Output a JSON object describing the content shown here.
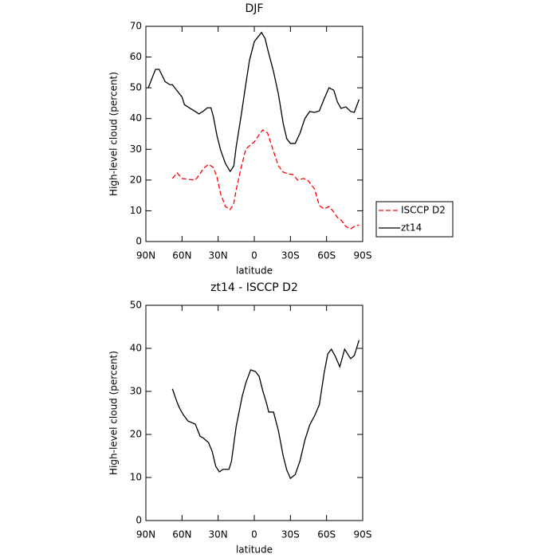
{
  "chart_data": [
    {
      "type": "line",
      "title": "DJF",
      "x_label": "latitude",
      "y_label": "High-level cloud (percent)",
      "xlim": [
        90,
        -90
      ],
      "xticks": [
        {
          "value": 90,
          "label": "90N"
        },
        {
          "value": 60,
          "label": "60N"
        },
        {
          "value": 30,
          "label": "30N"
        },
        0,
        {
          "value": -30,
          "label": "30S"
        },
        {
          "value": -60,
          "label": "60S"
        },
        {
          "value": -90,
          "label": "90S"
        }
      ],
      "ylim": [
        0,
        70
      ],
      "yticks": [
        0,
        10,
        20,
        30,
        40,
        50,
        60,
        70
      ],
      "legend": "outside-right",
      "series": [
        {
          "name": "ISCCP D2",
          "color": "#ff0000",
          "line_style": "dashed",
          "x": [
            68,
            64,
            60,
            54,
            49,
            46,
            42,
            38,
            34,
            31,
            28,
            24,
            20,
            17,
            15,
            11,
            7,
            4,
            0,
            -4,
            -7,
            -11,
            -16,
            -20,
            -24,
            -28,
            -32,
            -36,
            -41,
            -45,
            -50,
            -54,
            -58,
            -62,
            -66,
            -69,
            -72,
            -76,
            -80,
            -83,
            -87
          ],
          "values": [
            20.5,
            22.3,
            20.5,
            20.2,
            20,
            21.5,
            23.8,
            25.1,
            24.1,
            21,
            15.6,
            11.4,
            10.4,
            12.4,
            16.9,
            23.9,
            30.1,
            31.1,
            32.4,
            34.7,
            36.3,
            35.3,
            29.3,
            24.6,
            22.6,
            22,
            21.8,
            20,
            20.5,
            19.7,
            17.1,
            11.7,
            10.6,
            11.4,
            9.6,
            7.8,
            7,
            4.9,
            4.1,
            4.9,
            5.4
          ]
        },
        {
          "name": "zt14",
          "color": "#000000",
          "line_style": "solid",
          "x": [
            88,
            82,
            79,
            74,
            70,
            68,
            64,
            60,
            58,
            54,
            49,
            46,
            42,
            39,
            36,
            34,
            31,
            28,
            24,
            20,
            17,
            15,
            11,
            7,
            4,
            0,
            -4,
            -6,
            -9,
            -11,
            -16,
            -20,
            -24,
            -27,
            -30,
            -34,
            -38,
            -42,
            -46,
            -50,
            -54,
            -58,
            -62,
            -66,
            -69,
            -72,
            -76,
            -80,
            -83,
            -87
          ],
          "values": [
            50,
            56,
            56,
            52,
            51,
            51,
            49,
            47,
            44.5,
            43.5,
            42.3,
            41.5,
            42.5,
            43.5,
            43.5,
            40.7,
            34.5,
            29.8,
            25.4,
            22.8,
            24.6,
            30.9,
            40.7,
            51.3,
            58.9,
            65,
            67,
            68,
            66,
            62.7,
            55.2,
            48,
            38.4,
            33.4,
            31.9,
            31.9,
            35.3,
            40,
            42.3,
            42,
            42.5,
            46.4,
            50,
            49.2,
            45.4,
            43.3,
            43.8,
            42.3,
            42,
            46.2
          ]
        }
      ]
    },
    {
      "type": "line",
      "title": "zt14 - ISCCP D2",
      "x_label": "latitude",
      "y_label": "High-level cloud (percent)",
      "xlim": [
        90,
        -90
      ],
      "xticks": [
        {
          "value": 90,
          "label": "90N"
        },
        {
          "value": 60,
          "label": "60N"
        },
        {
          "value": 30,
          "label": "30N"
        },
        0,
        {
          "value": -30,
          "label": "30S"
        },
        {
          "value": -60,
          "label": "60S"
        },
        {
          "value": -90,
          "label": "90S"
        }
      ],
      "ylim": [
        0,
        50
      ],
      "yticks": [
        0,
        10,
        20,
        30,
        40,
        50
      ],
      "series": [
        {
          "color": "#000000",
          "line_style": "solid",
          "x": [
            68,
            64,
            62,
            59,
            55,
            49,
            45,
            42,
            38,
            35,
            32,
            29,
            26,
            21,
            19,
            15,
            10,
            7,
            3,
            -1,
            -4,
            -7,
            -10,
            -12,
            -16,
            -20,
            -24,
            -27,
            -30,
            -34,
            -38,
            -42,
            -46,
            -50,
            -54,
            -58,
            -61,
            -64,
            -67,
            -71,
            -75,
            -80,
            -83,
            -87
          ],
          "values": [
            30.6,
            27.4,
            26.1,
            24.6,
            23.1,
            22.4,
            19.6,
            19.1,
            18.1,
            16.1,
            12.6,
            11.3,
            11.9,
            11.9,
            13.7,
            21.9,
            28.9,
            32,
            35,
            34.6,
            33.5,
            30.2,
            27.4,
            25.2,
            25.2,
            20.9,
            15,
            11.7,
            9.8,
            10.7,
            13.9,
            18.7,
            22.2,
            24.3,
            26.9,
            34.3,
            38.7,
            39.8,
            38.3,
            35.7,
            39.8,
            37.6,
            38.3,
            41.9
          ]
        }
      ]
    }
  ]
}
